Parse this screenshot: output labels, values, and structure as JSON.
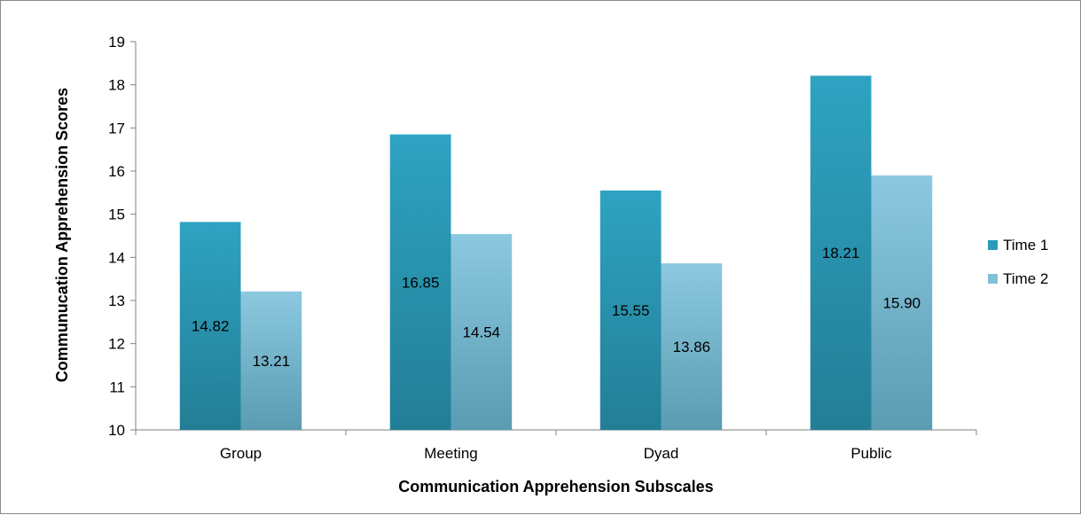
{
  "chart_data": {
    "type": "bar",
    "categories": [
      "Group",
      "Meeting",
      "Dyad",
      "Public"
    ],
    "series": [
      {
        "name": "Time 1",
        "values": [
          14.82,
          16.85,
          15.55,
          18.21
        ],
        "labels": [
          "14.82",
          "16.85",
          "15.55",
          "18.21"
        ],
        "color": "#2a9bb8"
      },
      {
        "name": "Time 2",
        "values": [
          13.21,
          14.54,
          13.86,
          15.9
        ],
        "labels": [
          "13.21",
          "14.54",
          "13.86",
          "15.90"
        ],
        "color": "#7fc0d8"
      }
    ],
    "xlabel": "Communication Apprehension Subscales",
    "ylabel": "Communucation Apprehension Scores",
    "ylim": [
      10,
      19
    ],
    "yticks": [
      "10",
      "11",
      "12",
      "13",
      "14",
      "15",
      "16",
      "17",
      "18",
      "19"
    ],
    "grid": false,
    "legend": "right"
  }
}
